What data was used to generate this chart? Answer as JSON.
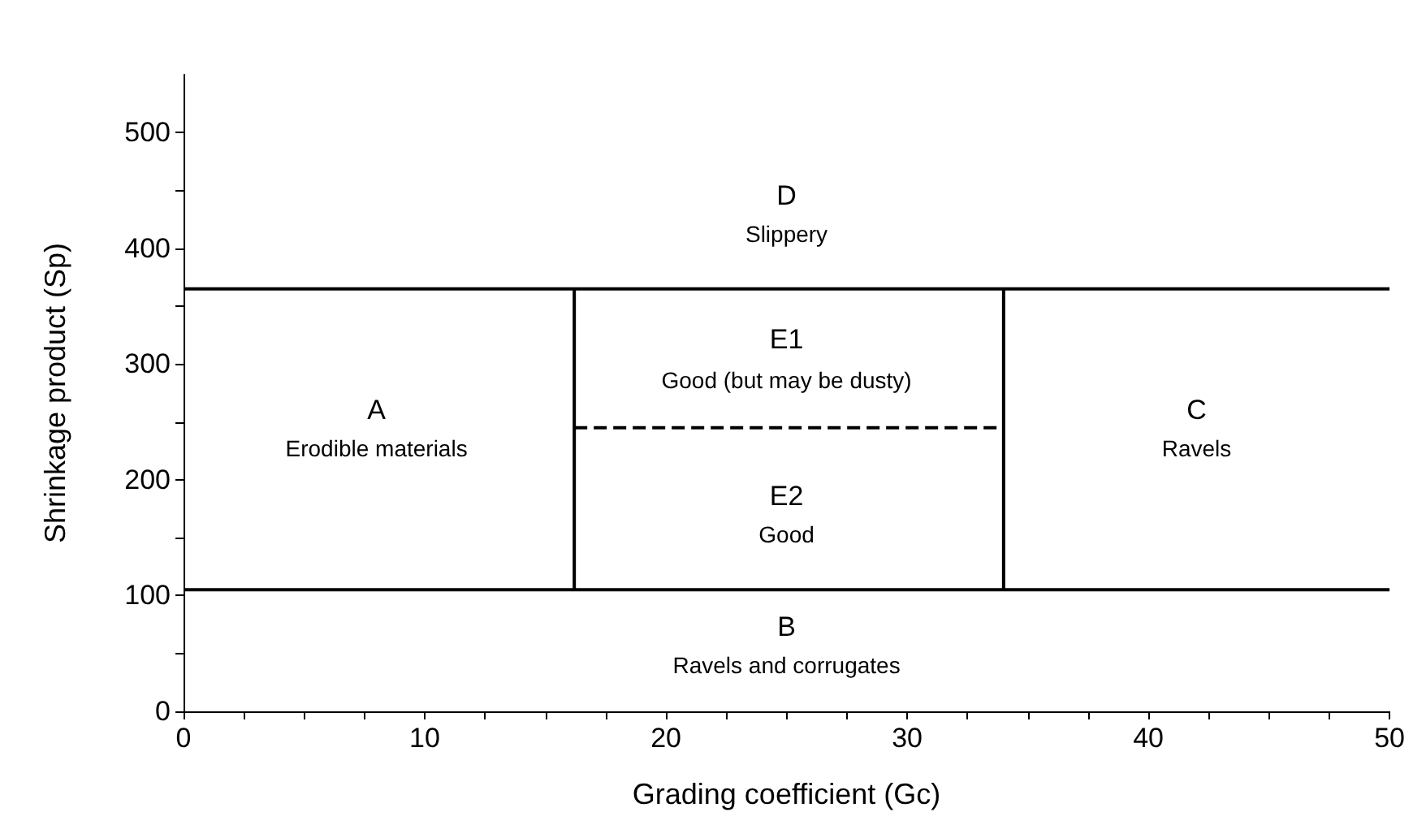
{
  "chart_data": {
    "type": "line",
    "xlabel": "Grading coefficient (Gc)",
    "ylabel": "Shrinkage product (Sp)",
    "xlim": [
      0,
      50
    ],
    "ylim": [
      0,
      550
    ],
    "xticks": [
      0,
      {
        "value": 2.5,
        "label": null
      },
      {
        "value": 5,
        "label": null
      },
      {
        "value": 7.5,
        "label": null
      },
      10,
      {
        "value": 12.5,
        "label": null
      },
      {
        "value": 15,
        "label": null
      },
      {
        "value": 17.5,
        "label": null
      },
      20,
      {
        "value": 22.5,
        "label": null
      },
      {
        "value": 25,
        "label": null
      },
      {
        "value": 27.5,
        "label": null
      },
      30,
      {
        "value": 32.5,
        "label": null
      },
      {
        "value": 35,
        "label": null
      },
      {
        "value": 37.5,
        "label": null
      },
      40,
      {
        "value": 42.5,
        "label": null
      },
      {
        "value": 45,
        "label": null
      },
      {
        "value": 47.5,
        "label": null
      },
      50
    ],
    "yticks": [
      0,
      {
        "value": 50,
        "label": null
      },
      100,
      {
        "value": 150,
        "label": null
      },
      200,
      {
        "value": 250,
        "label": null
      },
      300,
      {
        "value": 350,
        "label": null
      },
      400,
      {
        "value": 450,
        "label": null
      },
      500
    ],
    "grid": false,
    "marker": "none",
    "series": [
      {
        "color": "#000000",
        "x": [
          0,
          50
        ],
        "values": [
          365,
          365
        ],
        "line_style": "solid"
      },
      {
        "color": "#000000",
        "x": [
          0,
          50
        ],
        "values": [
          105,
          105
        ],
        "line_style": "solid"
      },
      {
        "color": "#000000",
        "x": [
          16.2,
          16.2
        ],
        "values": [
          105,
          365
        ],
        "line_style": "solid"
      },
      {
        "color": "#000000",
        "x": [
          34,
          34
        ],
        "values": [
          105,
          365
        ],
        "line_style": "solid"
      },
      {
        "color": "#000000",
        "x": [
          16.2,
          34
        ],
        "values": [
          245,
          245
        ],
        "line_style": "dashed"
      }
    ],
    "annotations": [
      "D",
      "Slippery",
      "E1",
      "Good (but may be dusty)",
      "E2",
      "Good",
      "A",
      "Erodible materials",
      "C",
      "Ravels",
      "B",
      "Ravels and corrugates"
    ]
  }
}
